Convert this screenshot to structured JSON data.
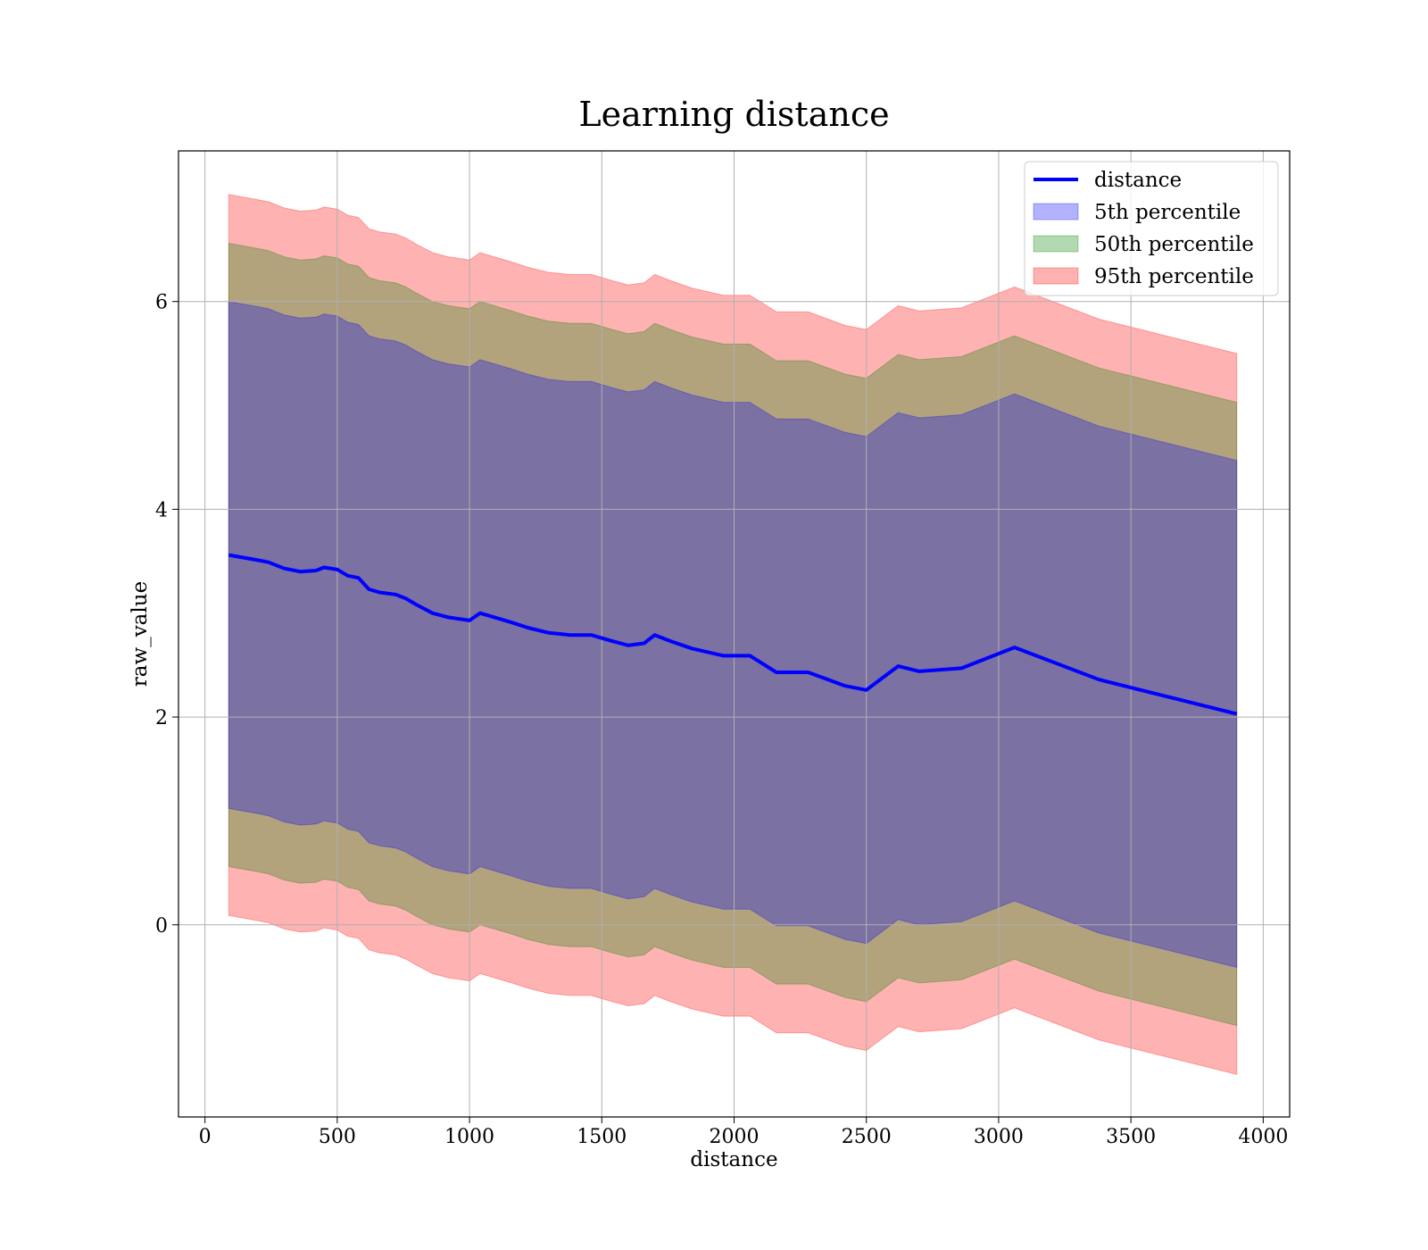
{
  "chart_data": {
    "type": "area",
    "title": "Learning distance",
    "xlabel": "distance",
    "ylabel": "raw_value",
    "xlim": [
      -100,
      4100
    ],
    "ylim": [
      -1.85,
      7.45
    ],
    "xticks": [
      0,
      500,
      1000,
      1500,
      2000,
      2500,
      3000,
      3500,
      4000
    ],
    "yticks": [
      0,
      2,
      4,
      6
    ],
    "grid": true,
    "legend_position": "upper right",
    "x": [
      90,
      200,
      240,
      300,
      360,
      420,
      450,
      500,
      540,
      580,
      620,
      660,
      720,
      760,
      800,
      860,
      920,
      1000,
      1040,
      1080,
      1160,
      1220,
      1300,
      1380,
      1460,
      1540,
      1600,
      1660,
      1700,
      1760,
      1840,
      1960,
      2060,
      2160,
      2280,
      2420,
      2500,
      2620,
      2700,
      2860,
      3060,
      3380,
      3900
    ],
    "series": [
      {
        "name": "distance",
        "kind": "line",
        "color": "#0000ff",
        "values": [
          3.56,
          3.51,
          3.49,
          3.43,
          3.4,
          3.41,
          3.44,
          3.42,
          3.36,
          3.34,
          3.23,
          3.2,
          3.18,
          3.14,
          3.08,
          3.0,
          2.96,
          2.93,
          3.0,
          2.97,
          2.91,
          2.86,
          2.81,
          2.79,
          2.79,
          2.73,
          2.69,
          2.71,
          2.79,
          2.73,
          2.66,
          2.59,
          2.59,
          2.43,
          2.43,
          2.3,
          2.26,
          2.49,
          2.44,
          2.47,
          2.67,
          2.36,
          2.03
        ]
      },
      {
        "name": "5th percentile",
        "kind": "band",
        "color": "#0000ff",
        "offset": 2.44
      },
      {
        "name": "50th percentile",
        "kind": "band",
        "color": "#008000",
        "offset": 3.0
      },
      {
        "name": "95th percentile",
        "kind": "band",
        "color": "#ff0000",
        "offset": 3.47
      }
    ]
  }
}
